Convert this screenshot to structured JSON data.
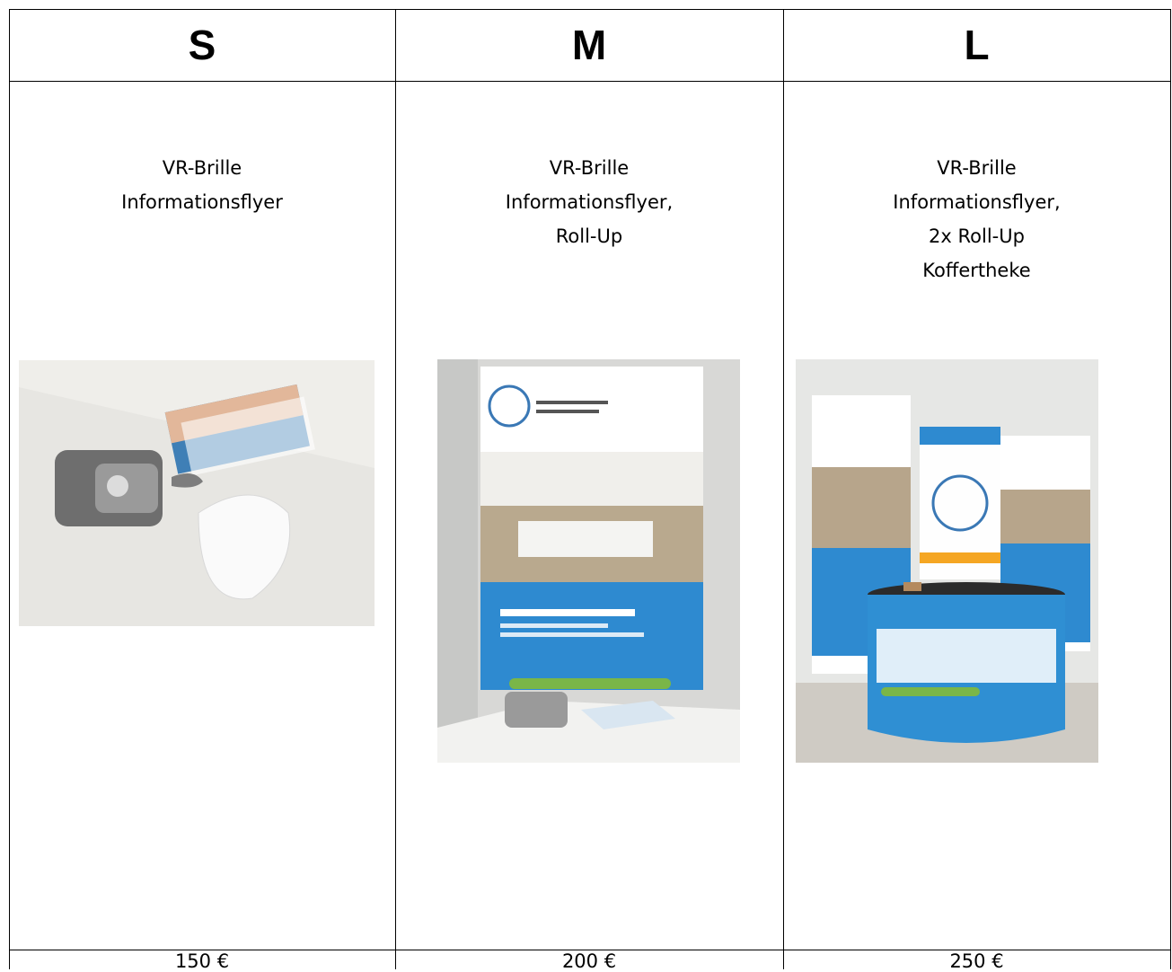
{
  "table": {
    "header": [
      "S",
      "M",
      "L"
    ],
    "items": [
      [
        "VR-Brille",
        "Informationsflyer"
      ],
      [
        "VR-Brille",
        "Informationsflyer,",
        "Roll-Up"
      ],
      [
        "VR-Brille",
        "Informationsflyer,",
        "2x Roll-Up",
        "Koffertheke"
      ]
    ],
    "prices": [
      "150 €",
      "200 €",
      "250 €"
    ]
  }
}
